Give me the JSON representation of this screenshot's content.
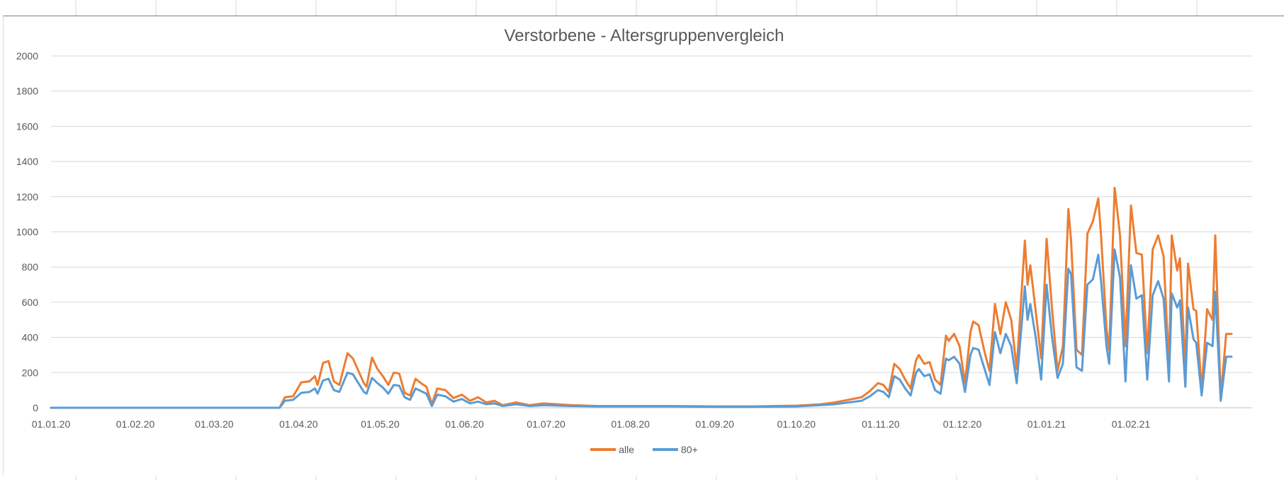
{
  "chart_data": {
    "type": "line",
    "title": "Verstorbene - Altersgruppenvergleich",
    "xlabel": "",
    "ylabel": "",
    "ylim": [
      0,
      2000
    ],
    "yticks": [
      "0",
      "200",
      "400",
      "600",
      "800",
      "1000",
      "1200",
      "1400",
      "1600",
      "1800",
      "2000"
    ],
    "x_tick_labels": [
      "01.01.20",
      "01.02.20",
      "01.03.20",
      "01.04.20",
      "01.05.20",
      "01.06.20",
      "01.07.20",
      "01.08.20",
      "01.09.20",
      "01.10.20",
      "01.11.20",
      "01.12.20",
      "01.01.21",
      "01.02.21"
    ],
    "x_range": [
      "2020-01-01",
      "2021-02-27"
    ],
    "grid": "horizontal",
    "legend_position": "bottom",
    "series": [
      {
        "name": "alle",
        "color": "#ed7d31",
        "points": [
          [
            "2020-01-01",
            0
          ],
          [
            "2020-03-25",
            0
          ],
          [
            "2020-03-27",
            60
          ],
          [
            "2020-03-30",
            65
          ],
          [
            "2020-04-02",
            145
          ],
          [
            "2020-04-05",
            150
          ],
          [
            "2020-04-07",
            180
          ],
          [
            "2020-04-08",
            130
          ],
          [
            "2020-04-10",
            255
          ],
          [
            "2020-04-12",
            265
          ],
          [
            "2020-04-14",
            150
          ],
          [
            "2020-04-16",
            130
          ],
          [
            "2020-04-19",
            310
          ],
          [
            "2020-04-21",
            280
          ],
          [
            "2020-04-23",
            210
          ],
          [
            "2020-04-25",
            140
          ],
          [
            "2020-04-26",
            120
          ],
          [
            "2020-04-28",
            285
          ],
          [
            "2020-04-30",
            220
          ],
          [
            "2020-05-02",
            180
          ],
          [
            "2020-05-04",
            130
          ],
          [
            "2020-05-06",
            200
          ],
          [
            "2020-05-08",
            195
          ],
          [
            "2020-05-10",
            85
          ],
          [
            "2020-05-12",
            70
          ],
          [
            "2020-05-14",
            165
          ],
          [
            "2020-05-16",
            140
          ],
          [
            "2020-05-18",
            120
          ],
          [
            "2020-05-20",
            20
          ],
          [
            "2020-05-22",
            110
          ],
          [
            "2020-05-25",
            100
          ],
          [
            "2020-05-28",
            55
          ],
          [
            "2020-05-31",
            75
          ],
          [
            "2020-06-03",
            40
          ],
          [
            "2020-06-06",
            60
          ],
          [
            "2020-06-09",
            30
          ],
          [
            "2020-06-12",
            40
          ],
          [
            "2020-06-15",
            15
          ],
          [
            "2020-06-20",
            30
          ],
          [
            "2020-06-25",
            15
          ],
          [
            "2020-06-30",
            25
          ],
          [
            "2020-07-10",
            15
          ],
          [
            "2020-07-20",
            10
          ],
          [
            "2020-08-01",
            10
          ],
          [
            "2020-08-15",
            10
          ],
          [
            "2020-09-01",
            8
          ],
          [
            "2020-09-15",
            8
          ],
          [
            "2020-10-01",
            12
          ],
          [
            "2020-10-10",
            20
          ],
          [
            "2020-10-15",
            30
          ],
          [
            "2020-10-20",
            45
          ],
          [
            "2020-10-25",
            60
          ],
          [
            "2020-10-28",
            95
          ],
          [
            "2020-10-31",
            140
          ],
          [
            "2020-11-02",
            130
          ],
          [
            "2020-11-04",
            90
          ],
          [
            "2020-11-06",
            250
          ],
          [
            "2020-11-08",
            220
          ],
          [
            "2020-11-10",
            160
          ],
          [
            "2020-11-12",
            110
          ],
          [
            "2020-11-14",
            270
          ],
          [
            "2020-11-15",
            300
          ],
          [
            "2020-11-17",
            250
          ],
          [
            "2020-11-19",
            260
          ],
          [
            "2020-11-21",
            160
          ],
          [
            "2020-11-23",
            130
          ],
          [
            "2020-11-25",
            410
          ],
          [
            "2020-11-26",
            380
          ],
          [
            "2020-11-28",
            420
          ],
          [
            "2020-11-30",
            350
          ],
          [
            "2020-12-02",
            140
          ],
          [
            "2020-12-04",
            430
          ],
          [
            "2020-12-05",
            490
          ],
          [
            "2020-12-07",
            470
          ],
          [
            "2020-12-09",
            330
          ],
          [
            "2020-12-11",
            210
          ],
          [
            "2020-12-13",
            590
          ],
          [
            "2020-12-15",
            420
          ],
          [
            "2020-12-17",
            600
          ],
          [
            "2020-12-19",
            500
          ],
          [
            "2020-12-21",
            220
          ],
          [
            "2020-12-24",
            950
          ],
          [
            "2020-12-25",
            700
          ],
          [
            "2020-12-26",
            810
          ],
          [
            "2020-12-28",
            550
          ],
          [
            "2020-12-30",
            280
          ],
          [
            "2021-01-01",
            960
          ],
          [
            "2021-01-03",
            560
          ],
          [
            "2021-01-05",
            210
          ],
          [
            "2021-01-07",
            350
          ],
          [
            "2021-01-09",
            1130
          ],
          [
            "2021-01-10",
            950
          ],
          [
            "2021-01-12",
            330
          ],
          [
            "2021-01-14",
            300
          ],
          [
            "2021-01-16",
            990
          ],
          [
            "2021-01-18",
            1060
          ],
          [
            "2021-01-20",
            1190
          ],
          [
            "2021-01-21",
            980
          ],
          [
            "2021-01-23",
            450
          ],
          [
            "2021-01-24",
            330
          ],
          [
            "2021-01-26",
            1250
          ],
          [
            "2021-01-28",
            980
          ],
          [
            "2021-01-30",
            350
          ],
          [
            "2021-02-01",
            1150
          ],
          [
            "2021-02-03",
            880
          ],
          [
            "2021-02-05",
            870
          ],
          [
            "2021-02-07",
            310
          ],
          [
            "2021-02-09",
            900
          ],
          [
            "2021-02-11",
            980
          ],
          [
            "2021-02-13",
            860
          ],
          [
            "2021-02-15",
            230
          ],
          [
            "2021-02-16",
            980
          ],
          [
            "2021-02-18",
            780
          ],
          [
            "2021-02-19",
            850
          ],
          [
            "2021-02-21",
            220
          ],
          [
            "2021-02-22",
            820
          ],
          [
            "2021-02-24",
            560
          ],
          [
            "2021-02-25",
            550
          ],
          [
            "2021-02-27",
            100
          ],
          [
            "2021-03-01",
            560
          ],
          [
            "2021-03-03",
            500
          ],
          [
            "2021-03-04",
            980
          ],
          [
            "2021-03-06",
            60
          ],
          [
            "2021-03-08",
            420
          ],
          [
            "2021-03-10",
            420
          ]
        ]
      },
      {
        "name": "80+",
        "color": "#5b9bd5",
        "points": [
          [
            "2020-01-01",
            0
          ],
          [
            "2020-03-25",
            0
          ],
          [
            "2020-03-27",
            40
          ],
          [
            "2020-03-30",
            45
          ],
          [
            "2020-04-02",
            85
          ],
          [
            "2020-04-05",
            90
          ],
          [
            "2020-04-07",
            110
          ],
          [
            "2020-04-08",
            80
          ],
          [
            "2020-04-10",
            155
          ],
          [
            "2020-04-12",
            165
          ],
          [
            "2020-04-14",
            100
          ],
          [
            "2020-04-16",
            90
          ],
          [
            "2020-04-19",
            200
          ],
          [
            "2020-04-21",
            190
          ],
          [
            "2020-04-23",
            140
          ],
          [
            "2020-04-25",
            90
          ],
          [
            "2020-04-26",
            80
          ],
          [
            "2020-04-28",
            170
          ],
          [
            "2020-04-30",
            140
          ],
          [
            "2020-05-02",
            115
          ],
          [
            "2020-05-04",
            80
          ],
          [
            "2020-05-06",
            130
          ],
          [
            "2020-05-08",
            125
          ],
          [
            "2020-05-10",
            60
          ],
          [
            "2020-05-12",
            45
          ],
          [
            "2020-05-14",
            110
          ],
          [
            "2020-05-16",
            95
          ],
          [
            "2020-05-18",
            80
          ],
          [
            "2020-05-20",
            10
          ],
          [
            "2020-05-22",
            75
          ],
          [
            "2020-05-25",
            65
          ],
          [
            "2020-05-28",
            35
          ],
          [
            "2020-05-31",
            50
          ],
          [
            "2020-06-03",
            25
          ],
          [
            "2020-06-06",
            35
          ],
          [
            "2020-06-09",
            20
          ],
          [
            "2020-06-12",
            25
          ],
          [
            "2020-06-15",
            10
          ],
          [
            "2020-06-20",
            20
          ],
          [
            "2020-06-25",
            10
          ],
          [
            "2020-06-30",
            15
          ],
          [
            "2020-07-10",
            10
          ],
          [
            "2020-07-20",
            8
          ],
          [
            "2020-08-01",
            8
          ],
          [
            "2020-08-15",
            8
          ],
          [
            "2020-09-01",
            5
          ],
          [
            "2020-09-15",
            5
          ],
          [
            "2020-10-01",
            8
          ],
          [
            "2020-10-10",
            15
          ],
          [
            "2020-10-15",
            20
          ],
          [
            "2020-10-20",
            30
          ],
          [
            "2020-10-25",
            40
          ],
          [
            "2020-10-28",
            65
          ],
          [
            "2020-10-31",
            100
          ],
          [
            "2020-11-02",
            90
          ],
          [
            "2020-11-04",
            60
          ],
          [
            "2020-11-06",
            180
          ],
          [
            "2020-11-08",
            160
          ],
          [
            "2020-11-10",
            110
          ],
          [
            "2020-11-12",
            70
          ],
          [
            "2020-11-14",
            200
          ],
          [
            "2020-11-15",
            220
          ],
          [
            "2020-11-17",
            180
          ],
          [
            "2020-11-19",
            190
          ],
          [
            "2020-11-21",
            100
          ],
          [
            "2020-11-23",
            80
          ],
          [
            "2020-11-25",
            280
          ],
          [
            "2020-11-26",
            270
          ],
          [
            "2020-11-28",
            290
          ],
          [
            "2020-11-30",
            250
          ],
          [
            "2020-12-02",
            90
          ],
          [
            "2020-12-04",
            300
          ],
          [
            "2020-12-05",
            340
          ],
          [
            "2020-12-07",
            330
          ],
          [
            "2020-12-09",
            230
          ],
          [
            "2020-12-11",
            130
          ],
          [
            "2020-12-13",
            430
          ],
          [
            "2020-12-15",
            310
          ],
          [
            "2020-12-17",
            420
          ],
          [
            "2020-12-19",
            350
          ],
          [
            "2020-12-21",
            140
          ],
          [
            "2020-12-24",
            690
          ],
          [
            "2020-12-25",
            500
          ],
          [
            "2020-12-26",
            590
          ],
          [
            "2020-12-28",
            400
          ],
          [
            "2020-12-30",
            160
          ],
          [
            "2021-01-01",
            700
          ],
          [
            "2021-01-03",
            400
          ],
          [
            "2021-01-05",
            170
          ],
          [
            "2021-01-07",
            250
          ],
          [
            "2021-01-09",
            790
          ],
          [
            "2021-01-10",
            760
          ],
          [
            "2021-01-12",
            230
          ],
          [
            "2021-01-14",
            210
          ],
          [
            "2021-01-16",
            700
          ],
          [
            "2021-01-18",
            730
          ],
          [
            "2021-01-20",
            870
          ],
          [
            "2021-01-21",
            720
          ],
          [
            "2021-01-23",
            350
          ],
          [
            "2021-01-24",
            250
          ],
          [
            "2021-01-26",
            900
          ],
          [
            "2021-01-28",
            740
          ],
          [
            "2021-01-30",
            150
          ],
          [
            "2021-02-01",
            810
          ],
          [
            "2021-02-03",
            620
          ],
          [
            "2021-02-05",
            640
          ],
          [
            "2021-02-07",
            160
          ],
          [
            "2021-02-09",
            640
          ],
          [
            "2021-02-11",
            720
          ],
          [
            "2021-02-13",
            620
          ],
          [
            "2021-02-15",
            150
          ],
          [
            "2021-02-16",
            650
          ],
          [
            "2021-02-18",
            570
          ],
          [
            "2021-02-19",
            610
          ],
          [
            "2021-02-21",
            120
          ],
          [
            "2021-02-22",
            570
          ],
          [
            "2021-02-24",
            390
          ],
          [
            "2021-02-25",
            370
          ],
          [
            "2021-02-27",
            70
          ],
          [
            "2021-03-01",
            370
          ],
          [
            "2021-03-03",
            350
          ],
          [
            "2021-03-04",
            660
          ],
          [
            "2021-03-06",
            40
          ],
          [
            "2021-03-08",
            290
          ],
          [
            "2021-03-10",
            290
          ]
        ]
      }
    ]
  }
}
